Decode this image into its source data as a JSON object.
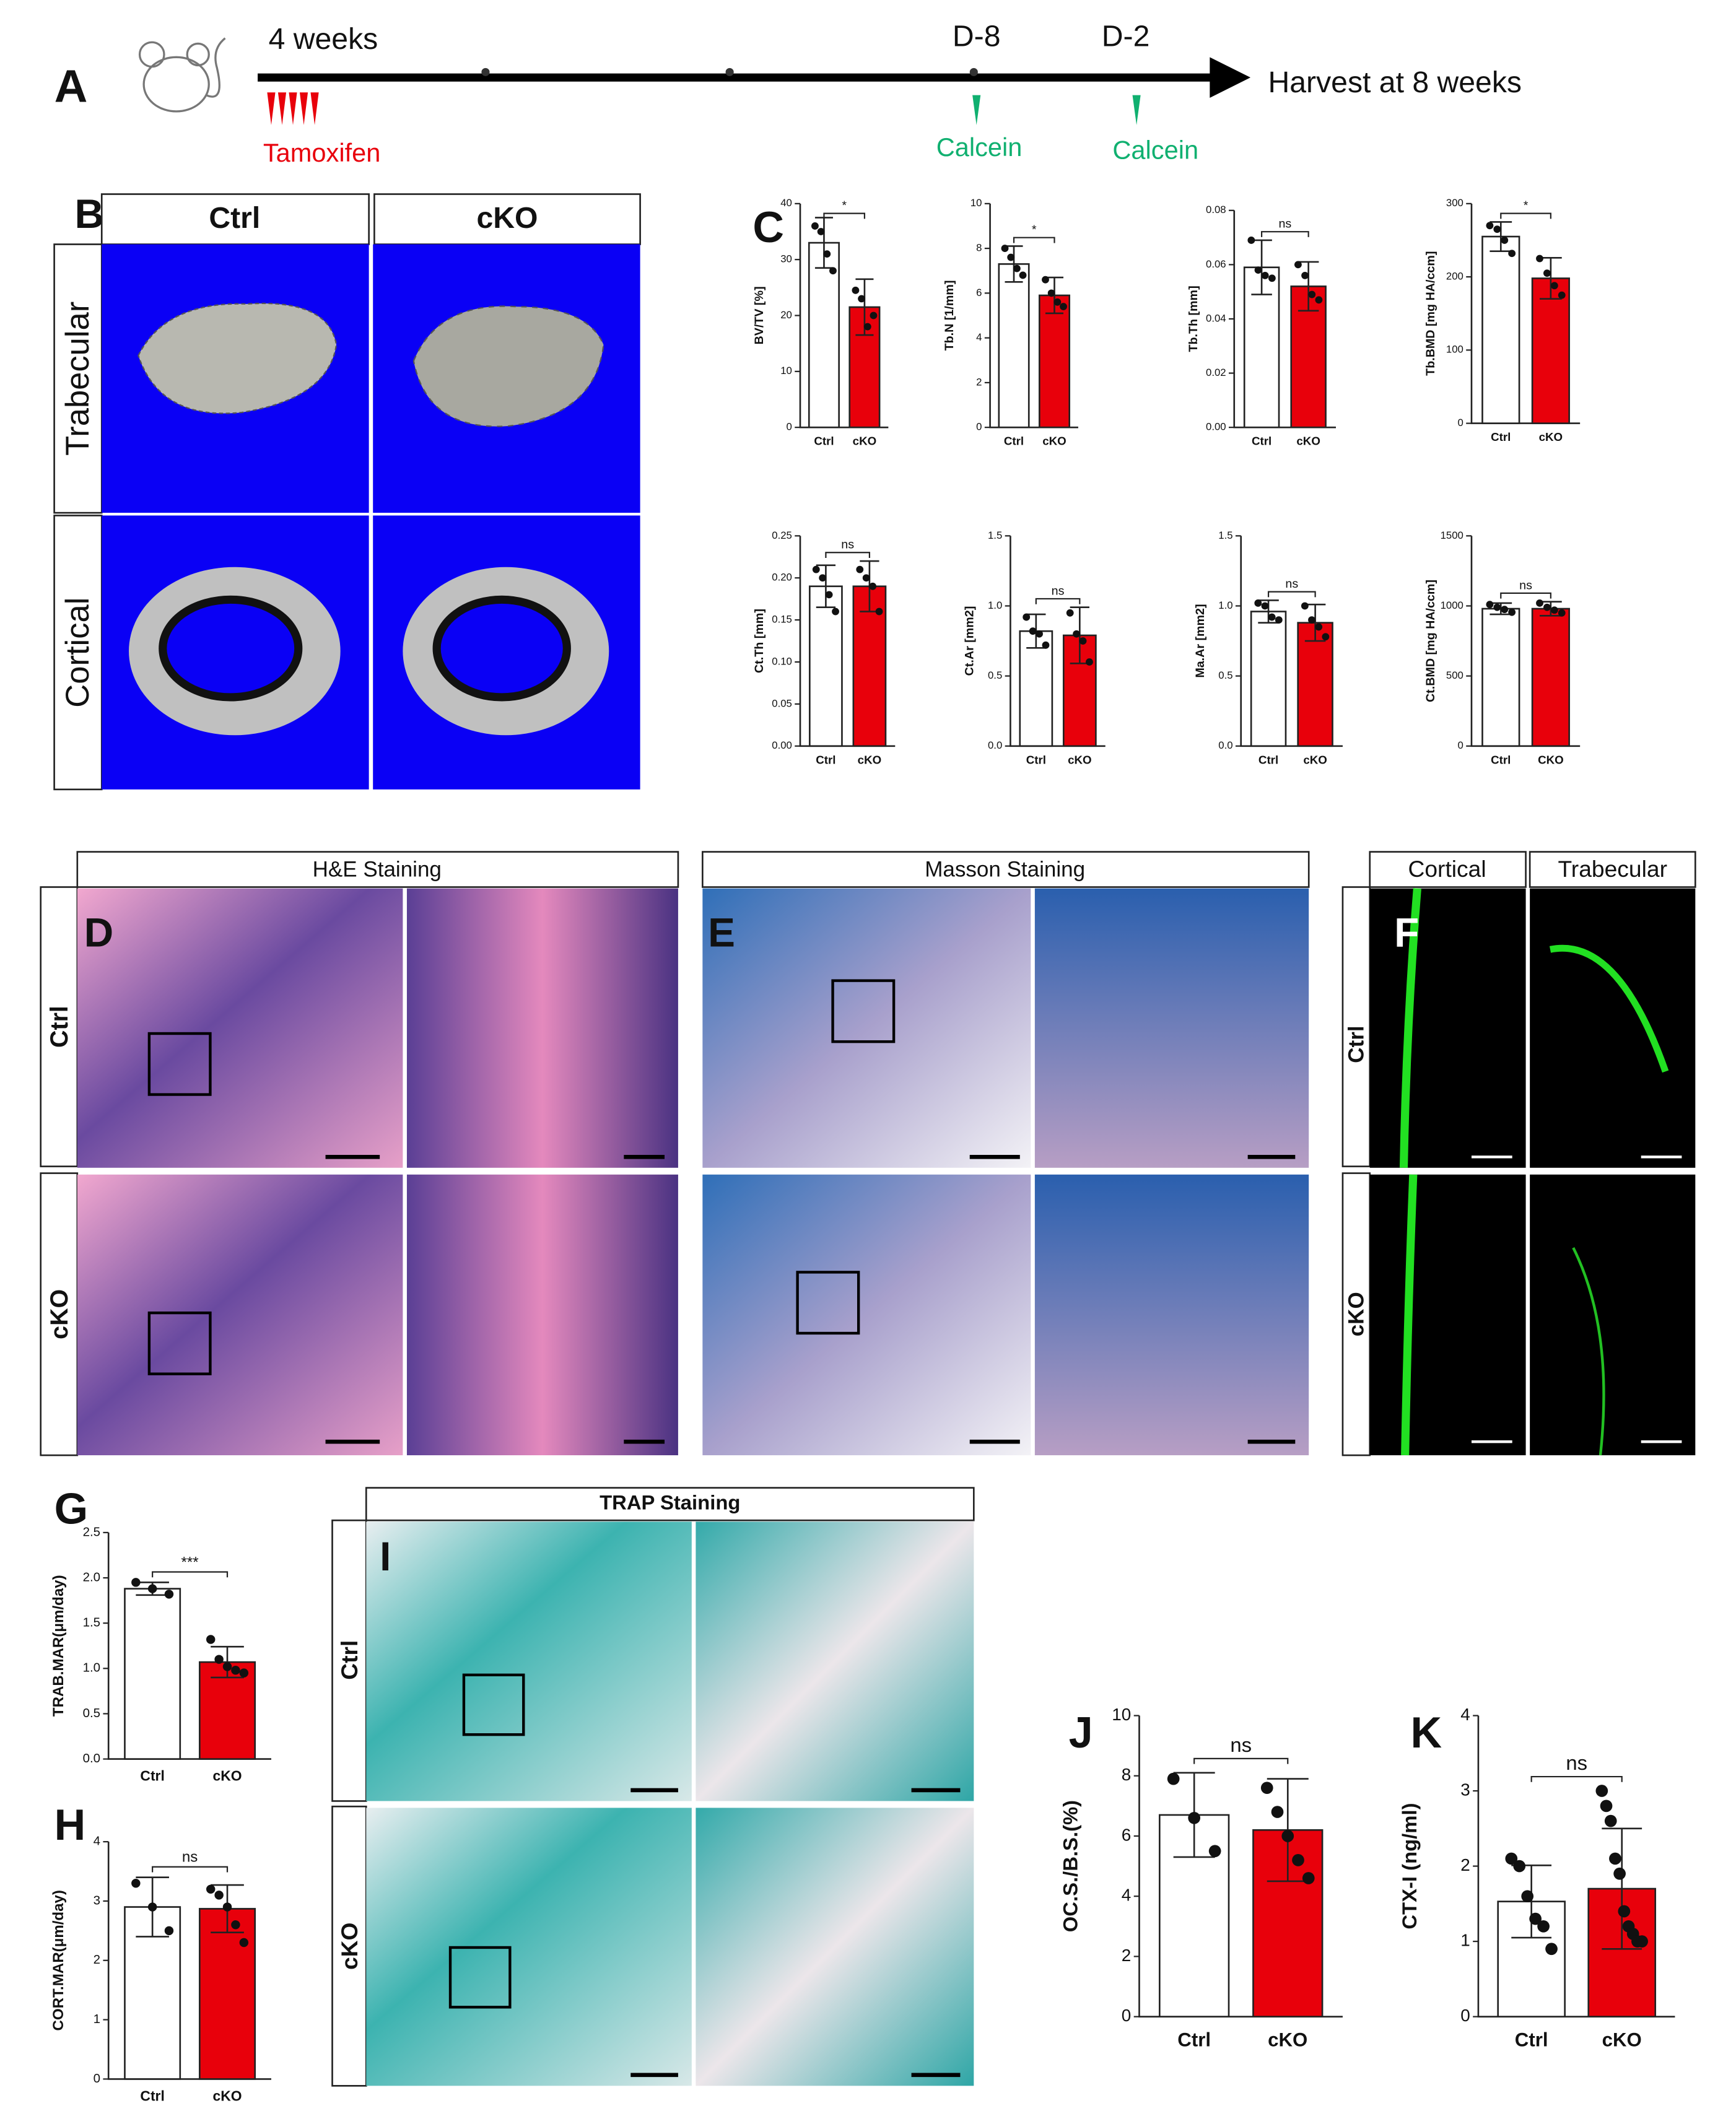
{
  "timeline": {
    "label": "A",
    "start": "4 weeks",
    "marks": [
      "D-8",
      "D-2"
    ],
    "end": "Harvest at 8 weeks",
    "treatment": "Tamoxifen",
    "injections": [
      "Calcein",
      "Calcein"
    ]
  },
  "micro_ct": {
    "label": "B",
    "columns": [
      "Ctrl",
      "cKO"
    ],
    "rows": [
      "Trabecular",
      "Cortical"
    ]
  },
  "histology": [
    {
      "label": "D",
      "title": "H&E Staining",
      "rows": [
        "Ctrl",
        "cKO"
      ]
    },
    {
      "label": "E",
      "title": "Masson Staining",
      "rows": [
        "Ctrl",
        "cKO"
      ]
    },
    {
      "label": "F",
      "columns": [
        "Cortical",
        "Trabecular"
      ],
      "rows": [
        "Ctrl",
        "cKO"
      ]
    },
    {
      "label": "I",
      "title": "TRAP Staining",
      "rows": [
        "Ctrl",
        "cKO"
      ]
    }
  ],
  "chart_data": [
    {
      "type": "bar",
      "panel_label": "C",
      "y_label": "BV/TV [%]",
      "categories": [
        "Ctrl",
        "cKO"
      ],
      "values": [
        33,
        21.5
      ],
      "errors": [
        4.5,
        5
      ],
      "points": [
        [
          36,
          35,
          31,
          28
        ],
        [
          24.5,
          23,
          18,
          20
        ]
      ],
      "colors": [
        "#ffffff",
        "#e8000b"
      ],
      "ylim": [
        0,
        40
      ],
      "yticks": [
        0,
        10,
        20,
        30,
        40
      ],
      "significance": "*"
    },
    {
      "type": "bar",
      "y_label": "Tb.N [1/mm]",
      "categories": [
        "Ctrl",
        "cKO"
      ],
      "values": [
        7.3,
        5.9
      ],
      "errors": [
        0.8,
        0.8
      ],
      "points": [
        [
          8,
          7.6,
          7.1,
          6.8
        ],
        [
          6.6,
          6,
          5.6,
          5.4
        ]
      ],
      "colors": [
        "#ffffff",
        "#e8000b"
      ],
      "ylim": [
        0,
        10
      ],
      "yticks": [
        0,
        2,
        4,
        6,
        8,
        10
      ],
      "significance": "*"
    },
    {
      "type": "bar",
      "y_label": "Tb.Th [mm]",
      "categories": [
        "Ctrl",
        "cKO"
      ],
      "values": [
        0.059,
        0.052
      ],
      "errors": [
        0.01,
        0.009
      ],
      "points": [
        [
          0.069,
          0.058,
          0.056,
          0.055
        ],
        [
          0.06,
          0.056,
          0.049,
          0.047
        ]
      ],
      "colors": [
        "#ffffff",
        "#e8000b"
      ],
      "ylim": [
        0,
        0.08
      ],
      "yticks": [
        {
          "value": 0,
          "label": "0.00"
        },
        {
          "value": 0.02,
          "label": "0.02"
        },
        {
          "value": 0.04,
          "label": "0.04"
        },
        {
          "value": 0.06,
          "label": "0.06"
        },
        {
          "value": 0.08,
          "label": "0.08"
        }
      ],
      "significance": "ns"
    },
    {
      "type": "bar",
      "y_label": "Tb.BMD [mg HA/ccm]",
      "categories": [
        "Ctrl",
        "cKO"
      ],
      "values": [
        255,
        198
      ],
      "errors": [
        20,
        28
      ],
      "points": [
        [
          270,
          265,
          250,
          232
        ],
        [
          225,
          205,
          188,
          175
        ]
      ],
      "colors": [
        "#ffffff",
        "#e8000b"
      ],
      "ylim": [
        0,
        300
      ],
      "yticks": [
        0,
        100,
        200,
        300
      ],
      "significance": "*"
    },
    {
      "type": "bar",
      "y_label": "Ct.Th [mm]",
      "categories": [
        "Ctrl",
        "cKO"
      ],
      "values": [
        0.19,
        0.19
      ],
      "errors": [
        0.025,
        0.03
      ],
      "points": [
        [
          0.21,
          0.2,
          0.18,
          0.16
        ],
        [
          0.21,
          0.2,
          0.19,
          0.16
        ]
      ],
      "colors": [
        "#ffffff",
        "#e8000b"
      ],
      "ylim": [
        0,
        0.25
      ],
      "yticks": [
        {
          "value": 0,
          "label": "0.00"
        },
        {
          "value": 0.05,
          "label": "0.05"
        },
        {
          "value": 0.1,
          "label": "0.10"
        },
        {
          "value": 0.15,
          "label": "0.15"
        },
        {
          "value": 0.2,
          "label": "0.20"
        },
        {
          "value": 0.25,
          "label": "0.25"
        }
      ],
      "significance": "ns"
    },
    {
      "type": "bar",
      "y_label": "Ct.Ar [mm2]",
      "categories": [
        "Ctrl",
        "cKO"
      ],
      "values": [
        0.82,
        0.79
      ],
      "errors": [
        0.12,
        0.2
      ],
      "points": [
        [
          0.92,
          0.82,
          0.8,
          0.72
        ],
        [
          0.95,
          0.8,
          0.75,
          0.6
        ]
      ],
      "colors": [
        "#ffffff",
        "#e8000b"
      ],
      "ylim": [
        0,
        1.5
      ],
      "yticks": [
        {
          "value": 0,
          "label": "0.0"
        },
        {
          "value": 0.5,
          "label": "0.5"
        },
        {
          "value": 1,
          "label": "1.0"
        },
        {
          "value": 1.5,
          "label": "1.5"
        }
      ],
      "significance": "ns"
    },
    {
      "type": "bar",
      "y_label": "Ma.Ar [mm2]",
      "categories": [
        "Ctrl",
        "cKO"
      ],
      "values": [
        0.96,
        0.88
      ],
      "errors": [
        0.08,
        0.13
      ],
      "points": [
        [
          1.02,
          1,
          0.92,
          0.9
        ],
        [
          1,
          0.9,
          0.85,
          0.78
        ]
      ],
      "colors": [
        "#ffffff",
        "#e8000b"
      ],
      "ylim": [
        0,
        1.5
      ],
      "yticks": [
        {
          "value": 0,
          "label": "0.0"
        },
        {
          "value": 0.5,
          "label": "0.5"
        },
        {
          "value": 1,
          "label": "1.0"
        },
        {
          "value": 1.5,
          "label": "1.5"
        }
      ],
      "significance": "ns"
    },
    {
      "type": "bar",
      "y_label": "Ct.BMD [mg HA/ccm]",
      "categories": [
        "Ctrl",
        "CKO"
      ],
      "values": [
        980,
        980
      ],
      "errors": [
        40,
        50
      ],
      "points": [
        [
          1010,
          990,
          975,
          955
        ],
        [
          1020,
          990,
          970,
          950
        ]
      ],
      "colors": [
        "#ffffff",
        "#e8000b"
      ],
      "ylim": [
        0,
        1500
      ],
      "yticks": [
        0,
        500,
        1000,
        1500
      ],
      "significance": "ns"
    },
    {
      "type": "bar",
      "panel_label": "G",
      "y_label": "TRAB.MAR(μm/day)",
      "categories": [
        "Ctrl",
        "cKO"
      ],
      "values": [
        1.88,
        1.07
      ],
      "errors": [
        0.07,
        0.17
      ],
      "points": [
        [
          1.95,
          1.88,
          1.82
        ],
        [
          1.32,
          1.1,
          1.02,
          0.98,
          0.95
        ]
      ],
      "colors": [
        "#ffffff",
        "#e8000b"
      ],
      "ylim": [
        0,
        2.5
      ],
      "yticks": [
        {
          "value": 0,
          "label": "0.0"
        },
        {
          "value": 0.5,
          "label": "0.5"
        },
        {
          "value": 1,
          "label": "1.0"
        },
        {
          "value": 1.5,
          "label": "1.5"
        },
        {
          "value": 2,
          "label": "2.0"
        },
        {
          "value": 2.5,
          "label": "2.5"
        }
      ],
      "significance": "***"
    },
    {
      "type": "bar",
      "panel_label": "H",
      "y_label": "CORT.MAR(μm/day)",
      "categories": [
        "Ctrl",
        "cKO"
      ],
      "values": [
        2.9,
        2.87
      ],
      "errors": [
        0.5,
        0.4
      ],
      "points": [
        [
          3.3,
          2.9,
          2.5
        ],
        [
          3.2,
          3.1,
          2.9,
          2.6,
          2.3
        ]
      ],
      "colors": [
        "#ffffff",
        "#e8000b"
      ],
      "ylim": [
        0,
        4
      ],
      "yticks": [
        0,
        1,
        2,
        3,
        4
      ],
      "significance": "ns"
    },
    {
      "type": "bar",
      "panel_label": "J",
      "y_label": "OC.S./B.S.(%)",
      "categories": [
        "Ctrl",
        "cKO"
      ],
      "values": [
        6.7,
        6.2
      ],
      "errors": [
        1.4,
        1.7
      ],
      "points": [
        [
          7.9,
          6.6,
          5.5
        ],
        [
          7.6,
          6.8,
          6,
          5.2,
          4.6
        ]
      ],
      "colors": [
        "#ffffff",
        "#e8000b"
      ],
      "ylim": [
        0,
        10
      ],
      "yticks": [
        0,
        2,
        4,
        6,
        8,
        10
      ],
      "significance": "ns"
    },
    {
      "type": "bar",
      "panel_label": "K",
      "y_label": "CTX-I (ng/ml)",
      "categories": [
        "Ctrl",
        "cKO"
      ],
      "values": [
        1.53,
        1.7
      ],
      "errors": [
        0.48,
        0.8
      ],
      "points": [
        [
          2.1,
          2,
          1.6,
          1.3,
          1.2,
          0.9
        ],
        [
          3,
          2.8,
          2.6,
          2.1,
          1.9,
          1.4,
          1.2,
          1.1,
          1,
          1
        ]
      ],
      "colors": [
        "#ffffff",
        "#e8000b"
      ],
      "ylim": [
        0,
        4
      ],
      "yticks": [
        0,
        1,
        2,
        3,
        4
      ],
      "significance": "ns"
    }
  ]
}
